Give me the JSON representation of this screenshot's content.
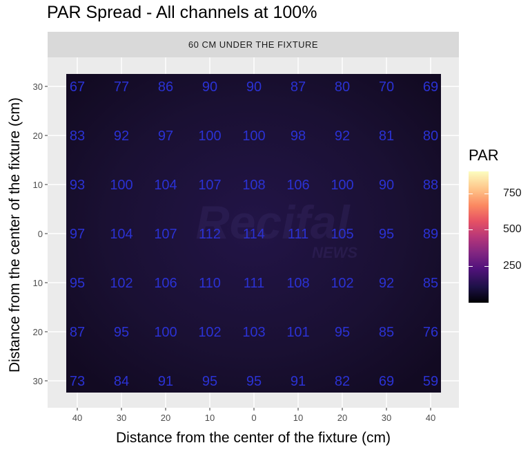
{
  "title": "PAR Spread - All channels at 100%",
  "facet_label": "60 CM UNDER THE FIXTURE",
  "legend": {
    "title": "PAR",
    "ticks": [
      "750",
      "500",
      "250"
    ],
    "tick_values": [
      750,
      500,
      250
    ],
    "range": [
      0,
      900
    ],
    "colormap": "magma"
  },
  "watermark": {
    "text": "Recifal",
    "subtext": "NEWS"
  },
  "chart_data": {
    "type": "heatmap",
    "title": "PAR Spread - All channels at 100%",
    "subtitle": "60 CM UNDER THE FIXTURE",
    "xlabel": "Distance from the center of the fixture (cm)",
    "ylabel": "Distance from the center of the fixture (cm)",
    "x_tick_labels": [
      "40",
      "30",
      "20",
      "10",
      "0",
      "10",
      "20",
      "30",
      "40"
    ],
    "y_tick_labels": [
      "30",
      "20",
      "10",
      "0",
      "10",
      "20",
      "30"
    ],
    "x": [
      -40,
      -30,
      -20,
      -10,
      0,
      10,
      20,
      30,
      40
    ],
    "y": [
      30,
      20,
      10,
      0,
      -10,
      -20,
      -30
    ],
    "values": [
      [
        67,
        77,
        86,
        90,
        90,
        87,
        80,
        70,
        69
      ],
      [
        83,
        92,
        97,
        100,
        100,
        98,
        92,
        81,
        80
      ],
      [
        93,
        100,
        104,
        107,
        108,
        106,
        100,
        90,
        88
      ],
      [
        97,
        104,
        107,
        112,
        114,
        111,
        105,
        95,
        89
      ],
      [
        95,
        102,
        106,
        110,
        111,
        108,
        102,
        92,
        85
      ],
      [
        87,
        95,
        100,
        102,
        103,
        101,
        95,
        85,
        76
      ],
      [
        73,
        84,
        91,
        95,
        95,
        91,
        82,
        69,
        59
      ]
    ],
    "label_color": "#2b32d4",
    "grid": true,
    "legend_position": "right"
  }
}
